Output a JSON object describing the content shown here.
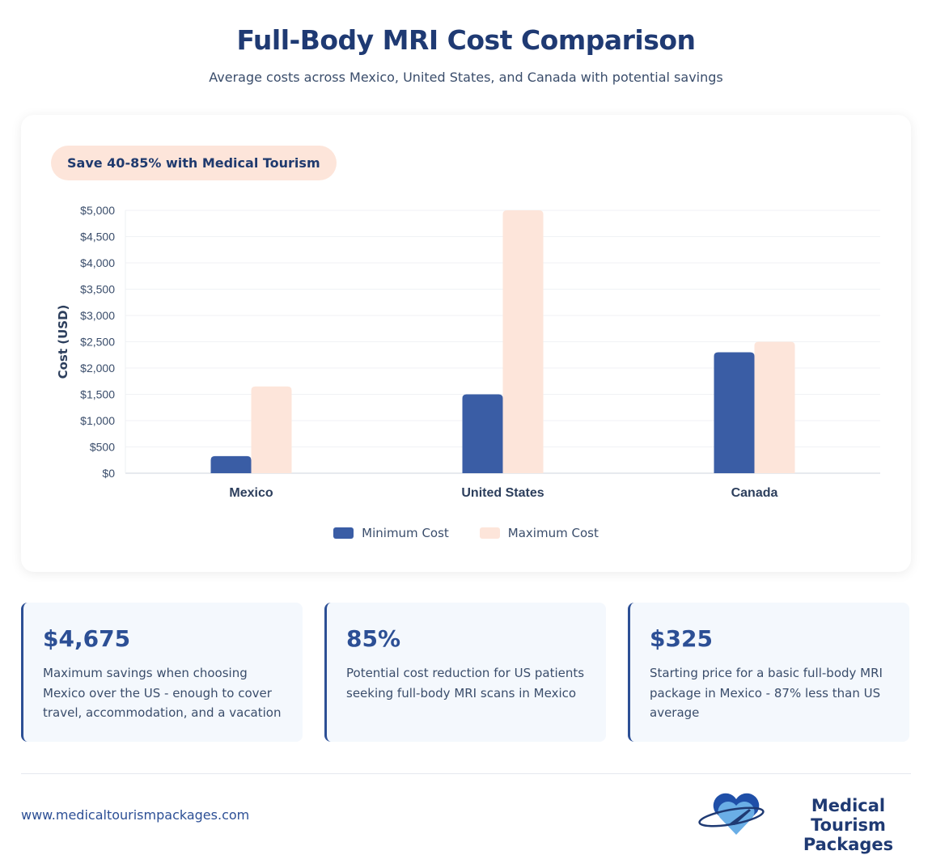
{
  "header": {
    "title": "Full-Body MRI Cost Comparison",
    "subtitle": "Average costs across Mexico, United States, and Canada with potential savings"
  },
  "badge": "Save 40-85% with Medical Tourism",
  "chart_data": {
    "type": "bar",
    "categories": [
      "Mexico",
      "United States",
      "Canada"
    ],
    "series": [
      {
        "name": "Minimum Cost",
        "values": [
          325,
          1500,
          2300
        ],
        "color": "#3a5da5"
      },
      {
        "name": "Maximum Cost",
        "values": [
          1650,
          5000,
          2500
        ],
        "color": "#fde5da"
      }
    ],
    "ylabel": "Cost (USD)",
    "ylim": [
      0,
      5000
    ],
    "yticks": [
      "$0",
      "$500",
      "$1,000",
      "$1,500",
      "$2,000",
      "$2,500",
      "$3,000",
      "$3,500",
      "$4,000",
      "$4,500",
      "$5,000"
    ],
    "grid": true,
    "legend": "bottom"
  },
  "stats": [
    {
      "value": "$4,675",
      "desc": "Maximum savings when choosing Mexico over the US - enough to cover travel, accommodation, and a vacation"
    },
    {
      "value": "85%",
      "desc": "Potential cost reduction for US patients seeking full-body MRI scans in Mexico"
    },
    {
      "value": "$325",
      "desc": "Starting price for a basic full-body MRI package in Mexico - 87% less than US average"
    }
  ],
  "footer": {
    "url": "www.medicaltourismpackages.com",
    "logo_line1": "Medical Tourism",
    "logo_line2": "Packages"
  }
}
